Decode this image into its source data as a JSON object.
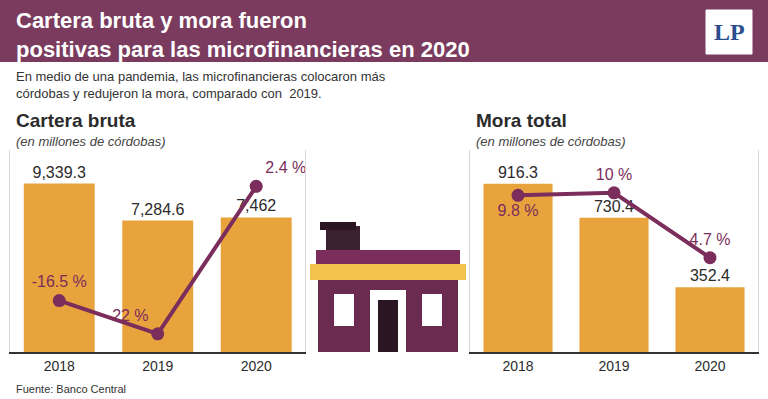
{
  "title": [
    "Cartera bruta y mora fueron",
    "positivas para las microfinancieras en 2020"
  ],
  "subtitle": [
    "En medio de una pandemia, las microfinancieras colocaron más",
    "córdobas y redujeron la mora, comparado con  2019."
  ],
  "logo": "LP",
  "source": "Fuente: Banco Central",
  "chart_data": [
    {
      "type": "bar",
      "title": "Cartera bruta",
      "subtitle": "(en millones de córdobas)",
      "categories": [
        "2018",
        "2019",
        "2020"
      ],
      "ylim": [
        0,
        11200
      ],
      "yticks": [],
      "y2lim": [
        -25,
        8.4
      ],
      "y2ticks": [],
      "tick_labels": "x",
      "grid": false,
      "data_labels": true,
      "series": [
        {
          "type": "bar",
          "color": "#e8a33d",
          "values": [
            9339.3,
            7284.6,
            7462
          ],
          "value_labels": [
            "9,339.3",
            "7,284.6",
            "7,462"
          ]
        },
        {
          "type": "line",
          "axis": "y2",
          "color": "#7b2d5b",
          "marker": "circle",
          "values": [
            -16.5,
            -22,
            2.4
          ],
          "value_labels": [
            "-16.5 %",
            "-22 %",
            "2.4 %"
          ]
        }
      ]
    },
    {
      "type": "bar",
      "title": "Mora total",
      "subtitle": "(en millones de córdobas)",
      "categories": [
        "2018",
        "2019",
        "2020"
      ],
      "ylim": [
        0,
        1100
      ],
      "yticks": [],
      "y2lim": [
        -3,
        13.5
      ],
      "y2ticks": [],
      "tick_labels": "x",
      "grid": false,
      "data_labels": true,
      "series": [
        {
          "type": "bar",
          "color": "#e8a33d",
          "values": [
            916.3,
            730.4,
            352.4
          ],
          "value_labels": [
            "916.3",
            "730.4",
            "352.4"
          ]
        },
        {
          "type": "line",
          "axis": "y2",
          "color": "#7b2d5b",
          "marker": "circle",
          "values": [
            9.8,
            10,
            4.7
          ],
          "value_labels": [
            "9.8 %",
            "10 %",
            "4.7 %"
          ]
        }
      ]
    }
  ]
}
